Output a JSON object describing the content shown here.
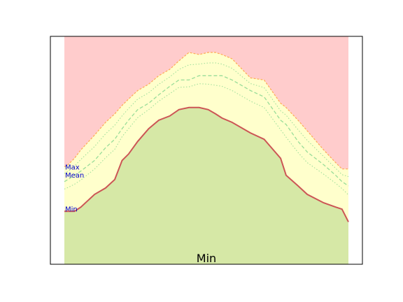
{
  "chart_data": {
    "type": "area",
    "title": "Min",
    "xlabel": "",
    "ylabel": "",
    "xlim": [
      0,
      31
    ],
    "ylim": [
      0,
      100
    ],
    "x": [
      0,
      0.4,
      1.1,
      1.8,
      3.3,
      4.5,
      5.5,
      6.3,
      7.0,
      8.0,
      9.2,
      10.3,
      11.5,
      12.5,
      13.6,
      14.7,
      15.7,
      16.5,
      17.2,
      18.3,
      20.3,
      21.8,
      23.6,
      24.2,
      25.5,
      26.5,
      28.3,
      29.6,
      30.3,
      31.0
    ],
    "series": [
      {
        "name": "Max",
        "values": [
          46,
          47,
          50,
          54,
          61,
          67,
          71,
          75,
          78,
          82,
          85,
          89,
          92,
          96,
          100,
          99,
          100,
          100,
          99,
          97,
          88,
          87,
          76,
          74,
          68,
          63,
          54,
          48,
          45,
          45
        ]
      },
      {
        "name": "Mean",
        "values": [
          39,
          40,
          42,
          44,
          49,
          55,
          59,
          64,
          68,
          73,
          76,
          80,
          84,
          87,
          87,
          89,
          89,
          89,
          89,
          87,
          82,
          79,
          68,
          66,
          58,
          53,
          47,
          42,
          39,
          37
        ]
      },
      {
        "name": "Min",
        "values": [
          25,
          25,
          25,
          27,
          33,
          36,
          40,
          49,
          52,
          58,
          64,
          68,
          70,
          73,
          74,
          74,
          73,
          71,
          69,
          67,
          62,
          59,
          50,
          42,
          37,
          33,
          29,
          27,
          26,
          20
        ]
      }
    ],
    "band_colors": {
      "above_max": "#ffcccc",
      "between": "#ffffcc",
      "below_min": "#d6e8a6"
    },
    "line_colors": {
      "max": "#ffaa55",
      "mean": "#99dd99",
      "min": "#cc5555"
    },
    "grid": false,
    "legend": "left-inline"
  }
}
